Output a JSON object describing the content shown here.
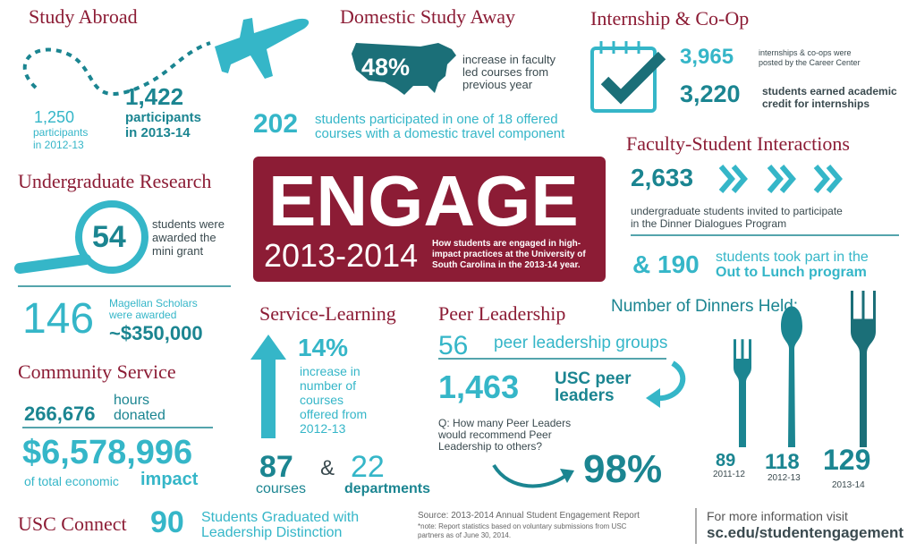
{
  "study_abroad": {
    "title": "Study Abroad",
    "prev_count": "1,250",
    "prev_label": [
      "participants",
      "in 2012-13"
    ],
    "count": "1,422",
    "label": [
      "participants",
      "in 2013-14"
    ]
  },
  "domestic": {
    "title": "Domestic Study Away",
    "percent": "48%",
    "percent_label": [
      "increase in faculty",
      "led courses from",
      "previous year"
    ],
    "count": "202",
    "label": [
      "students participated in one of 18 offered",
      "courses with a domestic travel component"
    ]
  },
  "internship": {
    "title": "Internship & Co-Op",
    "posted": "3,965",
    "posted_label": [
      "internships & co-ops were",
      "posted by the Career Center"
    ],
    "credit": "3,220",
    "credit_label": [
      "students earned academic",
      "credit for internships"
    ]
  },
  "faculty": {
    "title": "Faculty-Student Interactions",
    "invited": "2,633",
    "invited_label": [
      "undergraduate students invited to participate",
      "in the Dinner Dialogues Program"
    ],
    "lunch": "& 190",
    "lunch_label": [
      "students took part in the",
      "Out to Lunch program"
    ]
  },
  "research": {
    "title": "Undergraduate Research",
    "grants": "54",
    "grants_label": [
      "students were",
      "awarded the",
      "mini grant"
    ],
    "magellan": "146",
    "magellan_label": [
      "Magellan Scholars",
      "were awarded"
    ],
    "magellan_amount": "~$350,000"
  },
  "engage": {
    "title": "ENGAGE",
    "years": "2013-2014",
    "description": [
      "How students are engaged in high-",
      "impact practices at the University of",
      "South Carolina in the 2013-14 year."
    ]
  },
  "community": {
    "title": "Community Service",
    "hours": "266,676",
    "hours_label": [
      "hours",
      "donated"
    ],
    "impact": "$6,578,996",
    "impact_label": "of total economic",
    "impact_word": "impact"
  },
  "connect": {
    "title": "USC Connect",
    "count": "90",
    "label": [
      "Students Graduated with",
      "Leadership Distinction"
    ]
  },
  "service": {
    "title": "Service-Learning",
    "percent": "14%",
    "percent_label": [
      "increase in",
      "number of",
      "courses",
      "offered from",
      "2012-13"
    ],
    "courses": "87",
    "courses_label": "courses",
    "amp": "&",
    "departments": "22",
    "departments_label": "departments"
  },
  "peer": {
    "title": "Peer Leadership",
    "groups": "56",
    "groups_label": "peer leadership groups",
    "leaders": "1,463",
    "leaders_label": [
      "USC peer",
      "leaders"
    ],
    "question": [
      "Q: How many Peer Leaders",
      "would recommend Peer",
      "Leadership to others?"
    ],
    "answer": "98%"
  },
  "dinners": {
    "title": "Number of Dinners Held:",
    "items": [
      {
        "value": 89,
        "year": "2011-12"
      },
      {
        "value": 118,
        "year": "2012-13"
      },
      {
        "value": 129,
        "year": "2013-14"
      }
    ]
  },
  "footer": {
    "source": "Source:  2013-2014 Annual Student Engagement Report",
    "note": [
      "*note: Report statistics based on voluntary submissions from USC",
      "partners as of June 30, 2014."
    ],
    "more": "For more information visit",
    "url": "sc.edu/studentengagement"
  }
}
